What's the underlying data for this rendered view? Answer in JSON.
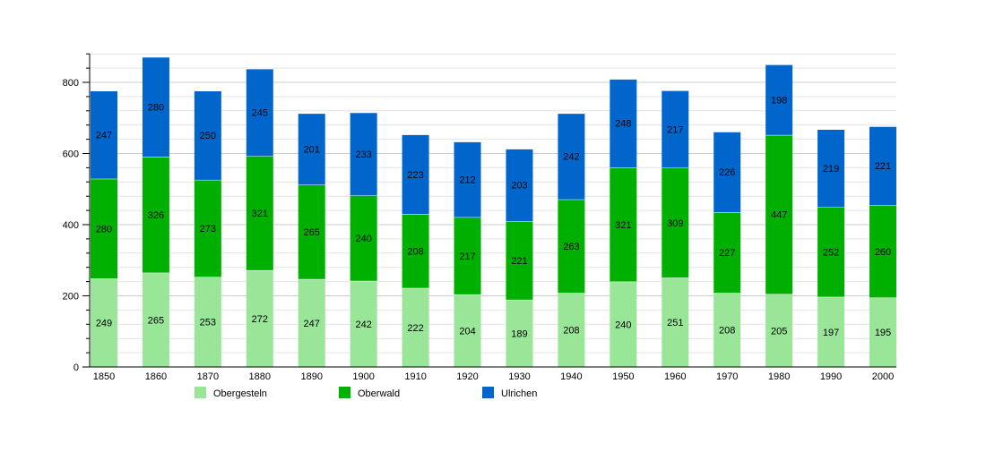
{
  "chart_data": {
    "type": "bar",
    "stacked": true,
    "title": "",
    "xlabel": "",
    "ylabel": "",
    "categories": [
      "1850",
      "1860",
      "1870",
      "1880",
      "1890",
      "1900",
      "1910",
      "1920",
      "1930",
      "1940",
      "1950",
      "1960",
      "1970",
      "1980",
      "1990",
      "2000"
    ],
    "series": [
      {
        "name": "Obergesteln",
        "color": "#99e699",
        "values": [
          249,
          265,
          253,
          272,
          247,
          242,
          222,
          204,
          189,
          208,
          240,
          251,
          208,
          205,
          197,
          195
        ]
      },
      {
        "name": "Oberwald",
        "color": "#00b000",
        "values": [
          280,
          326,
          273,
          321,
          265,
          240,
          208,
          217,
          221,
          263,
          321,
          309,
          227,
          447,
          252,
          260
        ]
      },
      {
        "name": "Ulrichen",
        "color": "#0066cc",
        "values": [
          247,
          280,
          250,
          245,
          201,
          233,
          223,
          212,
          203,
          242,
          248,
          217,
          226,
          198,
          219,
          221
        ]
      }
    ],
    "ylim": [
      0,
      880
    ],
    "yticks": [
      0,
      200,
      400,
      600,
      800
    ],
    "grid": true,
    "legend_position": "bottom",
    "data_labels": true
  }
}
